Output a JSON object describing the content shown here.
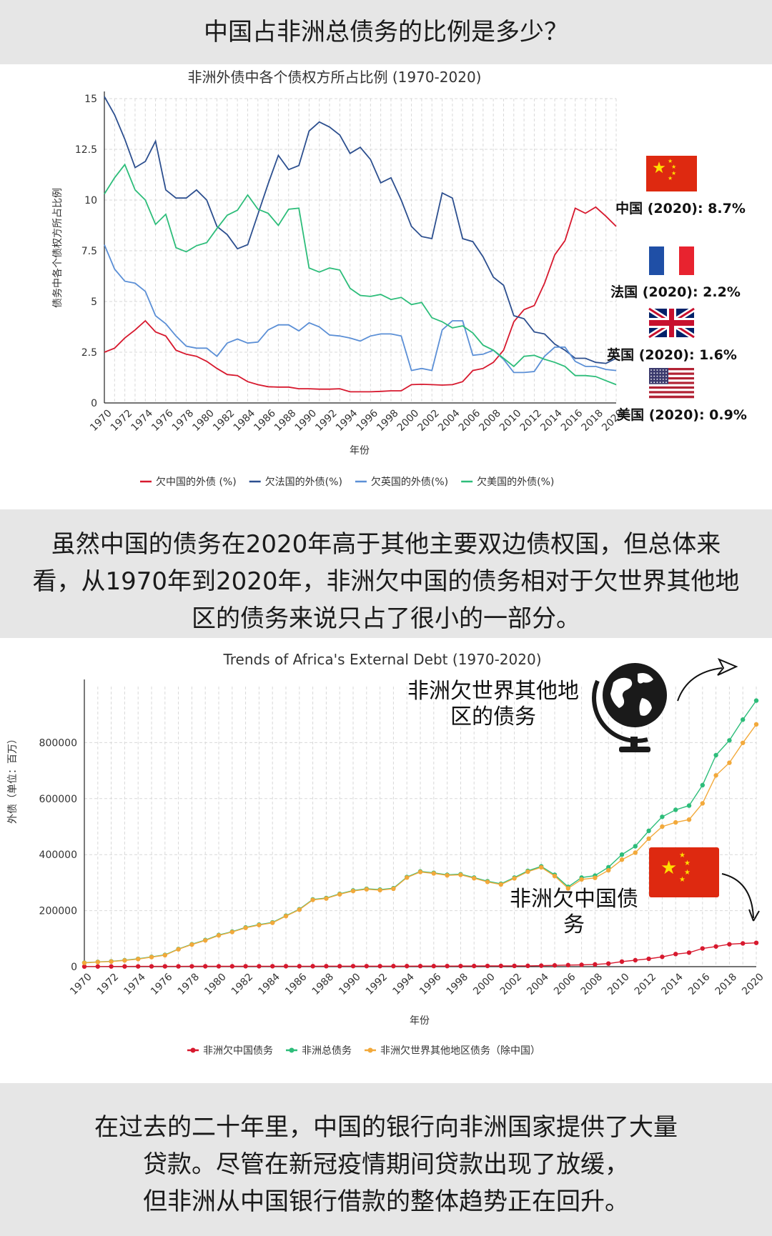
{
  "header": {
    "title": "中国占非洲总债务的比例是多少？"
  },
  "middle": {
    "lines": [
      "虽然中国的债务在2020年高于其他主要双边债权国，但总体来",
      "看，从1970年到2020年，非洲欠中国的债务相对于欠世界其他地",
      "区的债务来说只占了很小的一部分。"
    ]
  },
  "bottom": {
    "lines": [
      "在过去的二十年里，中国的银行向非洲国家提供了大量",
      "贷款。尽管在新冠疫情期间贷款出现了放缓，",
      "但非洲从中国银行借款的整体趋势正在回升。"
    ]
  },
  "flags": [
    {
      "name": "china-flag-icon",
      "label": "中国 (2020): 8.7%"
    },
    {
      "name": "france-flag-icon",
      "label": "法国 (2020): 2.2%"
    },
    {
      "name": "uk-flag-icon",
      "label": "英国 (2020): 1.6%"
    },
    {
      "name": "usa-flag-icon",
      "label": "美国 (2020): 0.9%"
    }
  ],
  "annotations": {
    "world_debt": [
      "非洲欠世界其他地",
      "区的债务"
    ],
    "china_debt": [
      "非洲欠中国债",
      "务"
    ]
  },
  "chart_data": [
    {
      "type": "line",
      "title": "非洲外债中各个债权方所占比例 (1970-2020)",
      "xlabel": "年份",
      "ylabel": "债务中各个债权方所占比例",
      "ylim": [
        0,
        15
      ],
      "yticks": [
        0,
        2.5,
        5,
        7.5,
        10,
        12.5,
        15
      ],
      "yticklabels": [
        "0",
        "2.5",
        "5",
        "7.5",
        "10",
        "12.5",
        "15"
      ],
      "xticks": [
        1970,
        1972,
        1974,
        1976,
        1978,
        1980,
        1982,
        1984,
        1986,
        1988,
        1990,
        1992,
        1994,
        1996,
        1998,
        2000,
        2002,
        2004,
        2006,
        2008,
        2010,
        2012,
        2014,
        2016,
        2018,
        2020
      ],
      "grid": true,
      "legend_position": "bottom",
      "x": [
        1970,
        1971,
        1972,
        1973,
        1974,
        1975,
        1976,
        1977,
        1978,
        1979,
        1980,
        1981,
        1982,
        1983,
        1984,
        1985,
        1986,
        1987,
        1988,
        1989,
        1990,
        1991,
        1992,
        1993,
        1994,
        1995,
        1996,
        1997,
        1998,
        1999,
        2000,
        2001,
        2002,
        2003,
        2004,
        2005,
        2006,
        2007,
        2008,
        2009,
        2010,
        2011,
        2012,
        2013,
        2014,
        2015,
        2016,
        2017,
        2018,
        2019,
        2020
      ],
      "series": [
        {
          "name": "欠中国的外债 (%)",
          "color": "#d7192e",
          "values": [
            2.5,
            2.7,
            3.2,
            3.6,
            4.05,
            3.5,
            3.3,
            2.6,
            2.4,
            2.3,
            2.05,
            1.7,
            1.4,
            1.35,
            1.05,
            0.9,
            0.8,
            0.78,
            0.78,
            0.7,
            0.7,
            0.68,
            0.68,
            0.7,
            0.55,
            0.55,
            0.55,
            0.57,
            0.6,
            0.6,
            0.9,
            0.92,
            0.9,
            0.88,
            0.9,
            1.05,
            1.6,
            1.7,
            2.0,
            2.6,
            4.0,
            4.6,
            4.8,
            5.9,
            7.3,
            8.0,
            9.6,
            9.35,
            9.65,
            9.2,
            8.7
          ]
        },
        {
          "name": "欠法国的外债(%)",
          "color": "#2c4f8f",
          "values": [
            15.1,
            14.2,
            13.0,
            11.6,
            11.9,
            12.9,
            10.5,
            10.1,
            10.1,
            10.5,
            10.0,
            8.7,
            8.3,
            7.6,
            7.8,
            9.3,
            10.8,
            12.2,
            11.5,
            11.7,
            13.4,
            13.85,
            13.6,
            13.2,
            12.3,
            12.6,
            12.0,
            10.85,
            11.1,
            10.0,
            8.7,
            8.2,
            8.1,
            10.35,
            10.1,
            8.1,
            7.95,
            7.2,
            6.2,
            5.8,
            4.3,
            4.15,
            3.5,
            3.4,
            2.9,
            2.6,
            2.2,
            2.2,
            2.0,
            1.95,
            2.2
          ]
        },
        {
          "name": "欠英国的外债(%)",
          "color": "#5b8fd6",
          "values": [
            7.8,
            6.6,
            6.0,
            5.9,
            5.5,
            4.3,
            3.9,
            3.3,
            2.8,
            2.7,
            2.7,
            2.3,
            2.95,
            3.15,
            2.95,
            3.0,
            3.6,
            3.85,
            3.85,
            3.55,
            3.95,
            3.75,
            3.35,
            3.3,
            3.2,
            3.05,
            3.3,
            3.4,
            3.4,
            3.3,
            1.6,
            1.7,
            1.6,
            3.6,
            4.05,
            4.05,
            2.35,
            2.4,
            2.6,
            2.15,
            1.5,
            1.5,
            1.55,
            2.3,
            2.75,
            2.75,
            2.05,
            1.8,
            1.8,
            1.65,
            1.6
          ]
        },
        {
          "name": "欠美国的外债(%)",
          "color": "#2dbd7a",
          "values": [
            10.3,
            11.1,
            11.75,
            10.5,
            10.0,
            8.8,
            9.3,
            7.65,
            7.45,
            7.75,
            7.9,
            8.6,
            9.25,
            9.5,
            10.25,
            9.55,
            9.35,
            8.75,
            9.55,
            9.6,
            6.65,
            6.45,
            6.65,
            6.55,
            5.65,
            5.3,
            5.25,
            5.35,
            5.1,
            5.2,
            4.85,
            4.95,
            4.2,
            4.0,
            3.7,
            3.8,
            3.45,
            2.85,
            2.6,
            2.2,
            1.8,
            2.3,
            2.35,
            2.15,
            2.0,
            1.8,
            1.35,
            1.35,
            1.3,
            1.1,
            0.9
          ]
        }
      ]
    },
    {
      "type": "line",
      "title": "Trends of Africa's External Debt (1970-2020)",
      "xlabel": "年份",
      "ylabel": "外债（单位：百万）",
      "ylim": [
        0,
        1000000
      ],
      "yticks": [
        0,
        200000,
        400000,
        600000,
        800000
      ],
      "yticklabels": [
        "0",
        "200000",
        "400000",
        "600000",
        "800000"
      ],
      "xticks": [
        1970,
        1972,
        1974,
        1976,
        1978,
        1980,
        1982,
        1984,
        1986,
        1988,
        1990,
        1992,
        1994,
        1996,
        1998,
        2000,
        2002,
        2004,
        2006,
        2008,
        2010,
        2012,
        2014,
        2016,
        2018,
        2020
      ],
      "grid": true,
      "legend_position": "bottom",
      "x": [
        1970,
        1971,
        1972,
        1973,
        1974,
        1975,
        1976,
        1977,
        1978,
        1979,
        1980,
        1981,
        1982,
        1983,
        1984,
        1985,
        1986,
        1987,
        1988,
        1989,
        1990,
        1991,
        1992,
        1993,
        1994,
        1995,
        1996,
        1997,
        1998,
        1999,
        2000,
        2001,
        2002,
        2003,
        2004,
        2005,
        2006,
        2007,
        2008,
        2009,
        2010,
        2011,
        2012,
        2013,
        2014,
        2015,
        2016,
        2017,
        2018,
        2019,
        2020
      ],
      "series": [
        {
          "name": "非洲欠中国债务",
          "color": "#d7192e",
          "values": [
            500,
            600,
            700,
            800,
            900,
            1000,
            1100,
            1100,
            1200,
            1300,
            1400,
            1400,
            1500,
            1500,
            1500,
            1600,
            1600,
            1600,
            1700,
            1700,
            1800,
            1800,
            1800,
            1900,
            1900,
            2000,
            2000,
            2100,
            2200,
            2300,
            2500,
            2600,
            2700,
            2900,
            3500,
            4500,
            5500,
            6500,
            8000,
            11000,
            18000,
            23000,
            28000,
            35000,
            45000,
            50000,
            65000,
            72000,
            80000,
            83000,
            85000
          ]
        },
        {
          "name": "非洲总债务",
          "color": "#2dbd7a",
          "values": [
            14000,
            17000,
            19000,
            23000,
            28000,
            35000,
            42000,
            63000,
            80000,
            95000,
            113000,
            125000,
            140000,
            150000,
            158000,
            182000,
            205000,
            240000,
            245000,
            260000,
            272000,
            278000,
            275000,
            280000,
            320000,
            340000,
            335000,
            328000,
            330000,
            318000,
            305000,
            296000,
            318000,
            342000,
            358000,
            328000,
            285000,
            318000,
            325000,
            355000,
            400000,
            430000,
            485000,
            535000,
            560000,
            575000,
            648000,
            755000,
            808000,
            882000,
            950000
          ]
        },
        {
          "name": "非洲欠世界其他地区债务（除中国）",
          "color": "#f2a93b",
          "values": [
            13500,
            16400,
            18300,
            22200,
            27100,
            34000,
            40900,
            61900,
            78800,
            93700,
            111600,
            123600,
            138500,
            148500,
            156500,
            180400,
            203400,
            238400,
            243300,
            258300,
            270200,
            276200,
            273200,
            278100,
            318100,
            338000,
            333000,
            325900,
            327800,
            315700,
            302500,
            293400,
            315300,
            339100,
            354500,
            323500,
            279500,
            311500,
            317000,
            344000,
            382000,
            407000,
            457000,
            500000,
            515000,
            525000,
            583000,
            683000,
            728000,
            799000,
            865000
          ]
        }
      ]
    }
  ]
}
